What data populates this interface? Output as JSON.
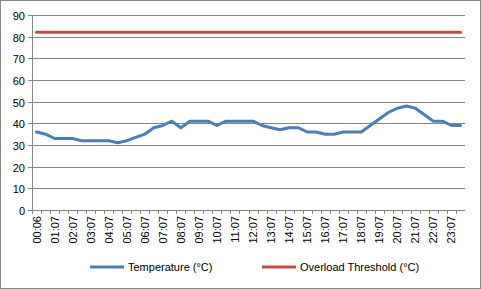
{
  "chart_data": {
    "type": "line",
    "categories": [
      "00:06",
      null,
      "01:07",
      null,
      "02:07",
      null,
      "03:07",
      null,
      "04:07",
      null,
      "05:07",
      null,
      "06:07",
      null,
      "07:07",
      null,
      "08:07",
      null,
      "09:07",
      null,
      "10:07",
      null,
      "11:07",
      null,
      "12:07",
      null,
      "13:07",
      null,
      "14:07",
      null,
      "15:07",
      null,
      "16:07",
      null,
      "17:07",
      null,
      "18:07",
      null,
      "19:07",
      null,
      "20:07",
      null,
      "21:07",
      null,
      "22:07",
      null,
      "23:07",
      null
    ],
    "series": [
      {
        "name": "Temperature (°C)",
        "color": "#4a7ebb",
        "values": [
          36,
          35,
          33,
          33,
          33,
          32,
          32,
          32,
          32,
          31,
          32,
          33.5,
          35,
          38,
          39,
          41,
          38,
          41,
          41,
          41,
          39,
          41,
          41,
          41,
          41,
          39,
          38,
          37,
          38,
          38,
          36,
          36,
          35,
          35,
          36,
          36,
          36,
          39,
          42,
          45,
          47,
          48,
          47,
          44,
          41,
          41,
          39,
          39
        ]
      },
      {
        "name": "Overload Threshold (°C)",
        "color": "#be4b48",
        "values": [
          82,
          82,
          82,
          82,
          82,
          82,
          82,
          82,
          82,
          82,
          82,
          82,
          82,
          82,
          82,
          82,
          82,
          82,
          82,
          82,
          82,
          82,
          82,
          82,
          82,
          82,
          82,
          82,
          82,
          82,
          82,
          82,
          82,
          82,
          82,
          82,
          82,
          82,
          82,
          82,
          82,
          82,
          82,
          82,
          82,
          82,
          82,
          82
        ]
      }
    ],
    "ylim": [
      0,
      90
    ],
    "yticks": [
      0,
      10,
      20,
      30,
      40,
      50,
      60,
      70,
      80,
      90
    ],
    "grid": true,
    "legend": "bottom"
  }
}
